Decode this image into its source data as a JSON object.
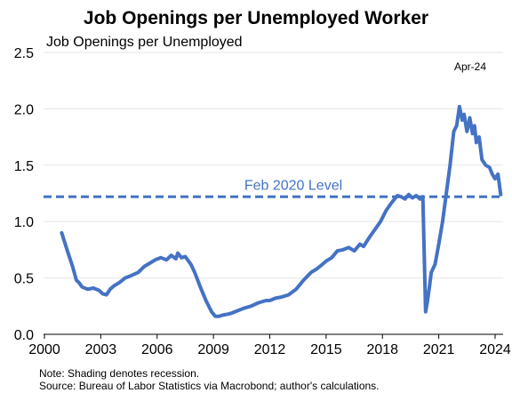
{
  "chart_data": {
    "type": "line",
    "title": "Job Openings per Unemployed Worker",
    "ylabel": "Job Openings per Unemployed",
    "xlim": [
      2000,
      2024.6
    ],
    "ylim": [
      0,
      2.5
    ],
    "x_ticks": [
      2000,
      2003,
      2006,
      2009,
      2012,
      2015,
      2018,
      2021,
      2024
    ],
    "y_ticks": [
      "0.0",
      "0.5",
      "1.0",
      "1.5",
      "2.0",
      "2.5"
    ],
    "annotation": "Apr-24",
    "grid": true,
    "series_color": "#4472C4",
    "reference_line": {
      "label": "Feb 2020 Level",
      "value": 1.22
    },
    "series": [
      {
        "x": [
          2000.92,
          2001.2,
          2001.5,
          2001.7,
          2001.83,
          2002.0,
          2002.3,
          2002.6,
          2002.9,
          2003.1,
          2003.3,
          2003.5,
          2003.7,
          2004.0,
          2004.3,
          2004.6,
          2005.0,
          2005.3,
          2005.6,
          2005.9,
          2006.2,
          2006.5,
          2006.75,
          2007.0,
          2007.1,
          2007.3,
          2007.5,
          2007.8,
          2008.0,
          2008.3,
          2008.6,
          2008.9,
          2009.1,
          2009.3,
          2009.5,
          2009.8,
          2010.0,
          2010.3,
          2010.6,
          2011.0,
          2011.4,
          2011.8,
          2012.0,
          2012.3,
          2012.6,
          2013.0,
          2013.4,
          2013.8,
          2014.2,
          2014.5,
          2014.8,
          2015.0,
          2015.3,
          2015.6,
          2015.9,
          2016.2,
          2016.5,
          2016.8,
          2017.0,
          2017.3,
          2017.6,
          2017.9,
          2018.2,
          2018.5,
          2018.8,
          2019.0,
          2019.2,
          2019.4,
          2019.6,
          2019.8,
          2020.0,
          2020.15,
          2020.3,
          2020.4,
          2020.5,
          2020.6,
          2020.8,
          2021.0,
          2021.2,
          2021.4,
          2021.6,
          2021.8,
          2021.95,
          2022.1,
          2022.25,
          2022.35,
          2022.5,
          2022.65,
          2022.8,
          2022.9,
          2023.0,
          2023.15,
          2023.3,
          2023.5,
          2023.7,
          2023.85,
          2024.0,
          2024.15,
          2024.3
        ],
        "y": [
          0.9,
          0.75,
          0.6,
          0.48,
          0.46,
          0.42,
          0.4,
          0.41,
          0.39,
          0.36,
          0.35,
          0.4,
          0.43,
          0.46,
          0.5,
          0.52,
          0.55,
          0.6,
          0.63,
          0.66,
          0.68,
          0.66,
          0.7,
          0.67,
          0.72,
          0.68,
          0.69,
          0.62,
          0.55,
          0.42,
          0.3,
          0.2,
          0.16,
          0.16,
          0.17,
          0.18,
          0.19,
          0.21,
          0.23,
          0.25,
          0.28,
          0.3,
          0.3,
          0.32,
          0.33,
          0.35,
          0.4,
          0.48,
          0.55,
          0.58,
          0.62,
          0.65,
          0.68,
          0.74,
          0.75,
          0.77,
          0.74,
          0.8,
          0.78,
          0.86,
          0.93,
          1.0,
          1.1,
          1.17,
          1.23,
          1.22,
          1.2,
          1.24,
          1.21,
          1.23,
          1.2,
          1.22,
          0.2,
          0.3,
          0.42,
          0.55,
          0.62,
          0.8,
          1.0,
          1.25,
          1.5,
          1.8,
          1.85,
          2.02,
          1.9,
          1.95,
          1.8,
          1.92,
          1.78,
          1.85,
          1.7,
          1.75,
          1.55,
          1.5,
          1.48,
          1.42,
          1.38,
          1.42,
          1.24
        ]
      }
    ]
  },
  "notes": [
    "Note: Shading denotes recession.",
    "Source: Bureau of Labor Statistics via Macrobond; author's calculations."
  ]
}
